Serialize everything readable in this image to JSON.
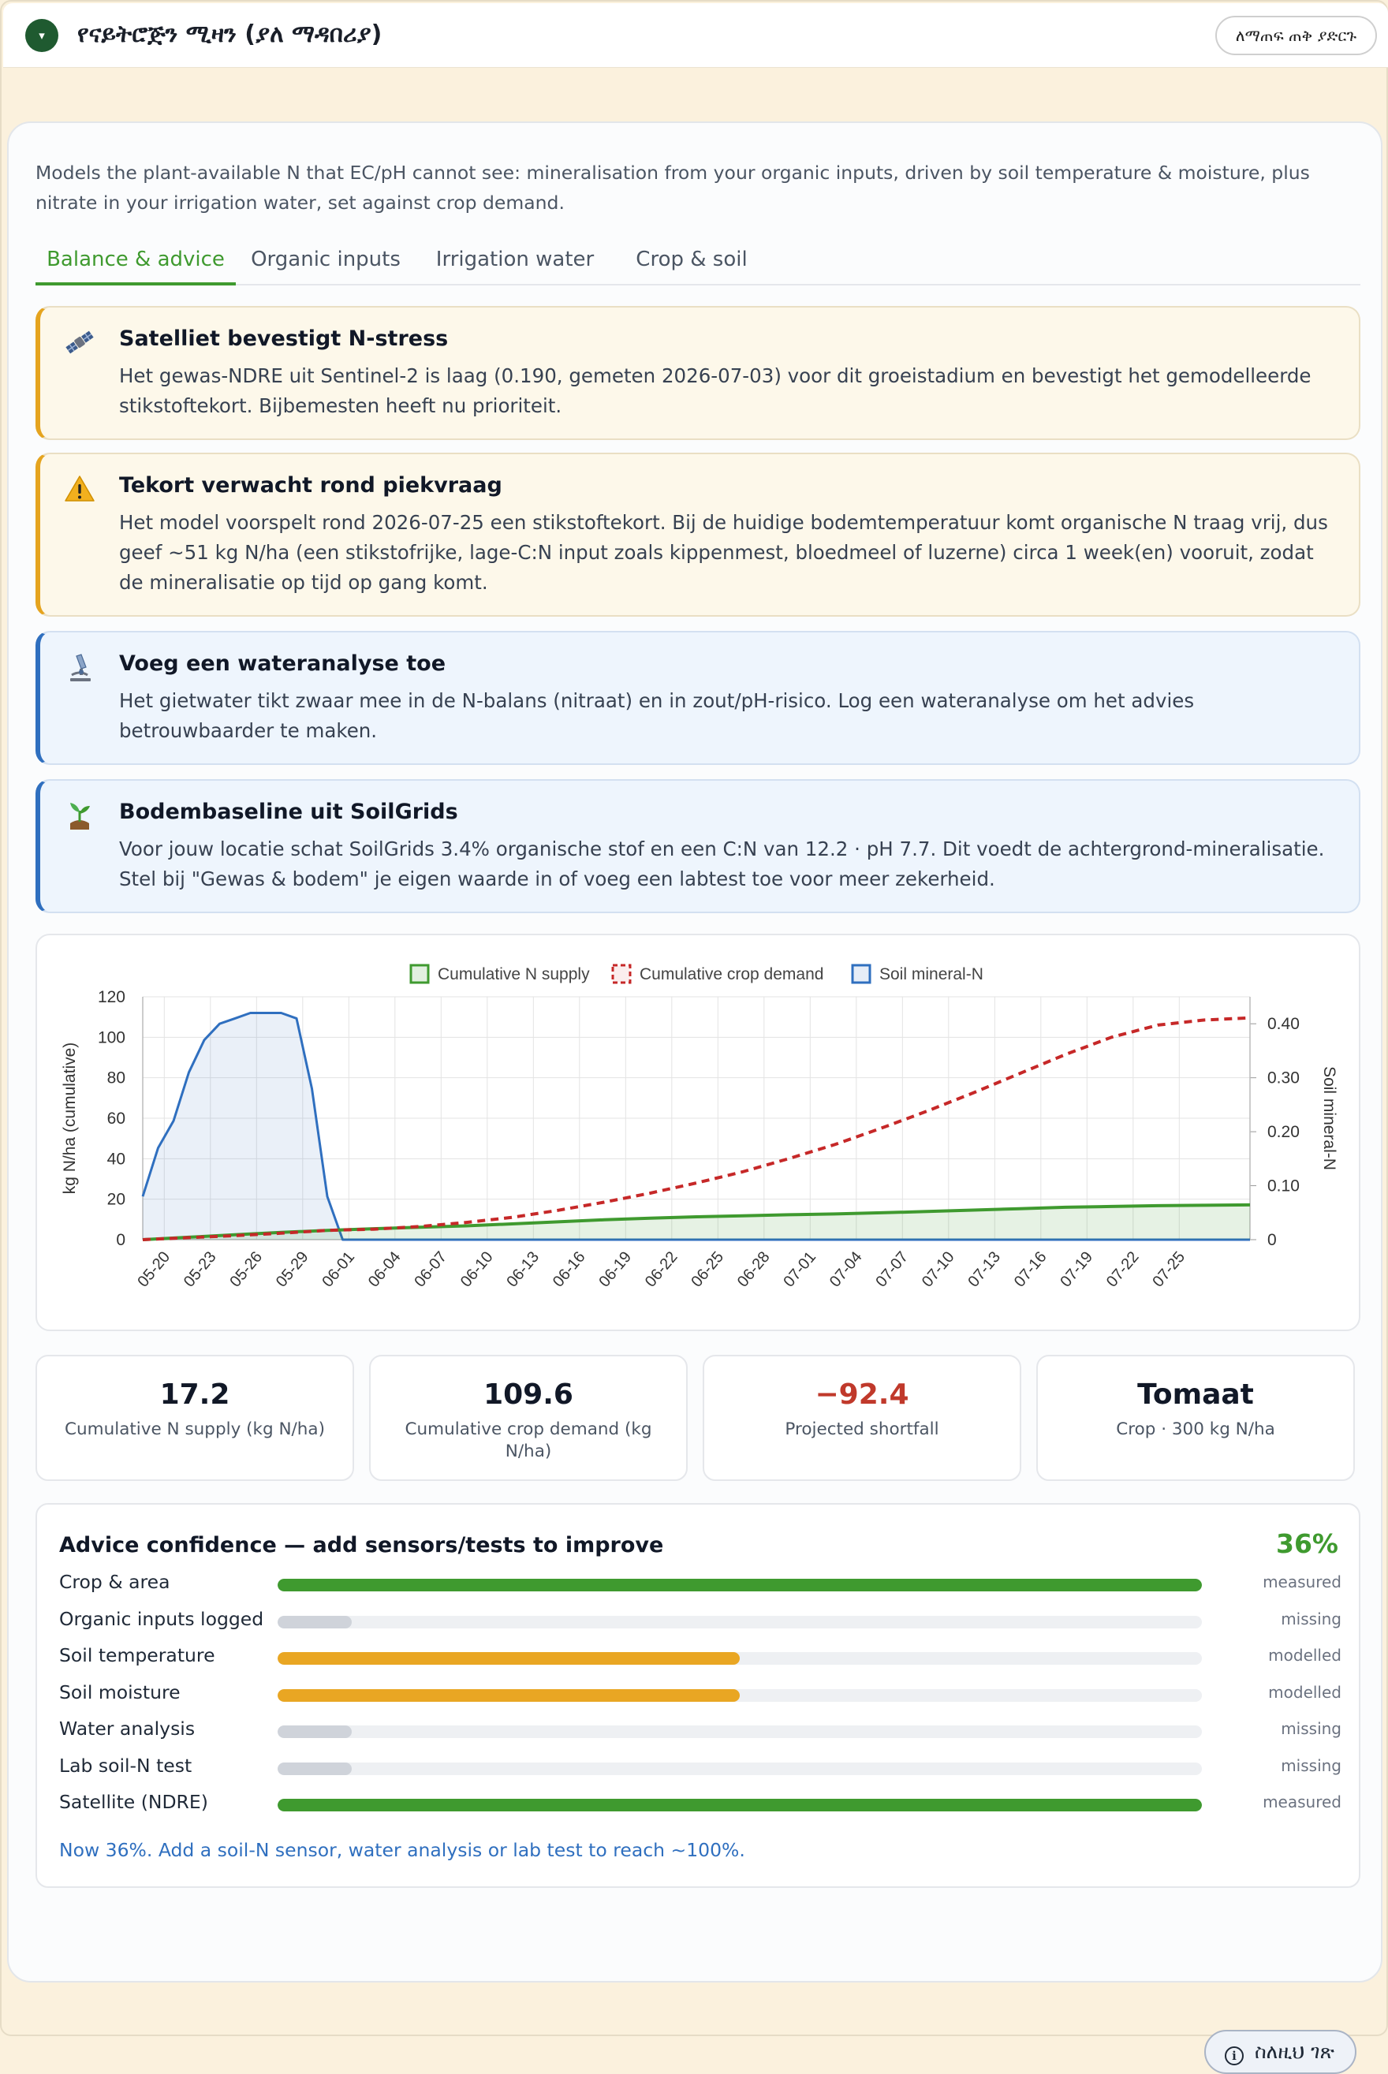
{
  "header": {
    "collapse_glyph": "▾",
    "title": "የናይትሮጅን ሚዛን (ያለ ማዳበሪያ)",
    "help_label": "ለማጠፍ ጠቅ ያድርጉ"
  },
  "intro": "Models the plant-available N that EC/pH cannot see: mineralisation from your organic inputs, driven by soil temperature & moisture, plus nitrate in your irrigation water, set against crop demand.",
  "tabs": [
    {
      "label": "Balance & advice",
      "active": true
    },
    {
      "label": "Organic inputs",
      "active": false
    },
    {
      "label": "Irrigation water",
      "active": false
    },
    {
      "label": "Crop & soil",
      "active": false
    }
  ],
  "alerts": [
    {
      "icon": "satellite-icon",
      "kind": "warning",
      "title": "Satelliet bevestigt N-stress",
      "body": "Het gewas-NDRE uit Sentinel-2 is laag (0.190, gemeten 2026-07-03) voor dit groeistadium en bevestigt het gemodelleerde stikstoftekort. Bijbemesten heeft nu prioriteit."
    },
    {
      "icon": "warning-icon",
      "kind": "warning",
      "title": "Tekort verwacht rond piekvraag",
      "body": "Het model voorspelt rond 2026-07-25 een stikstoftekort. Bij de huidige bodemtemperatuur komt organische N traag vrij, dus geef ~51 kg N/ha (een stikstofrijke, lage-C:N input zoals kippenmest, bloedmeel of luzerne) circa 1 week(en) vooruit, zodat de mineralisatie op tijd op gang komt."
    },
    {
      "icon": "microscope-icon",
      "kind": "info",
      "title": "Voeg een wateranalyse toe",
      "body": "Het gietwater tikt zwaar mee in de N-balans (nitraat) en in zout/pH-risico. Log een wateranalyse om het advies betrouwbaarder te maken."
    },
    {
      "icon": "seedling-icon",
      "kind": "info",
      "title": "Bodembaseline uit SoilGrids",
      "body": "Voor jouw locatie schat SoilGrids 3.4% organische stof en een C:N van 12.2 · pH 7.7. Dit voedt de achtergrond-mineralisatie. Stel bij \"Gewas & bodem\" je eigen waarde in of voeg een labtest toe voor meer zekerheid."
    }
  ],
  "chart_data": {
    "type": "line",
    "legend": [
      "Cumulative N supply",
      "Cumulative crop demand",
      "Soil mineral-N"
    ],
    "legend_position": "top-center",
    "ylabel": "kg N/ha (cumulative)",
    "y2label": "Soil mineral-N",
    "ylim": [
      0,
      120
    ],
    "y_ticks": [
      0,
      20,
      40,
      60,
      80,
      100,
      120
    ],
    "y2lim": [
      0,
      0.45
    ],
    "y2_ticks": [
      "0",
      "0.10",
      "0.20",
      "0.30",
      "0.40"
    ],
    "x_ticks": [
      "05-20",
      "05-23",
      "05-26",
      "05-29",
      "06-01",
      "06-04",
      "06-07",
      "06-10",
      "06-13",
      "06-16",
      "06-19",
      "06-22",
      "06-25",
      "06-28",
      "07-01",
      "07-04",
      "07-07",
      "07-10",
      "07-13",
      "07-16",
      "07-19",
      "07-22",
      "07-25"
    ],
    "grid": true,
    "x_start": "05-20",
    "series": [
      {
        "name": "Cumulative N supply",
        "color": "#3f9a2f",
        "style": "solid-filled",
        "points": [
          [
            0,
            0
          ],
          [
            3,
            1.2
          ],
          [
            6,
            2.4
          ],
          [
            9,
            3.6
          ],
          [
            12,
            4.6
          ],
          [
            15,
            5.4
          ],
          [
            18,
            6.1
          ],
          [
            21,
            6.8
          ],
          [
            24,
            7.8
          ],
          [
            27,
            8.8
          ],
          [
            30,
            9.8
          ],
          [
            33,
            10.6
          ],
          [
            36,
            11.3
          ],
          [
            39,
            11.8
          ],
          [
            42,
            12.3
          ],
          [
            45,
            12.7
          ],
          [
            48,
            13.3
          ],
          [
            51,
            13.9
          ],
          [
            54,
            14.6
          ],
          [
            57,
            15.3
          ],
          [
            60,
            16.0
          ],
          [
            63,
            16.4
          ],
          [
            66,
            16.8
          ],
          [
            69,
            17.0
          ],
          [
            72,
            17.2
          ]
        ]
      },
      {
        "name": "Cumulative crop demand",
        "color": "#c62828",
        "style": "dashed",
        "points": [
          [
            0,
            0
          ],
          [
            3,
            1.0
          ],
          [
            6,
            2.0
          ],
          [
            9,
            3.2
          ],
          [
            12,
            4.6
          ],
          [
            15,
            5.2
          ],
          [
            18,
            6.5
          ],
          [
            21,
            8.5
          ],
          [
            24,
            11
          ],
          [
            27,
            14.5
          ],
          [
            30,
            18.5
          ],
          [
            33,
            23
          ],
          [
            36,
            28
          ],
          [
            39,
            33.5
          ],
          [
            42,
            40
          ],
          [
            45,
            47
          ],
          [
            48,
            55
          ],
          [
            51,
            63.5
          ],
          [
            54,
            72.5
          ],
          [
            57,
            82
          ],
          [
            60,
            91.5
          ],
          [
            63,
            100
          ],
          [
            66,
            106
          ],
          [
            69,
            108.5
          ],
          [
            72,
            109.6
          ]
        ]
      },
      {
        "name": "Soil mineral-N",
        "color": "#2f6fbf",
        "style": "solid-filled",
        "axis": "right",
        "points": [
          [
            0,
            0.08
          ],
          [
            1,
            0.17
          ],
          [
            2,
            0.22
          ],
          [
            3,
            0.31
          ],
          [
            4,
            0.37
          ],
          [
            5,
            0.4
          ],
          [
            6,
            0.41
          ],
          [
            7,
            0.42
          ],
          [
            8,
            0.42
          ],
          [
            9,
            0.42
          ],
          [
            10,
            0.41
          ],
          [
            11,
            0.28
          ],
          [
            12,
            0.08
          ],
          [
            13,
            0.0
          ],
          [
            72,
            0.0
          ]
        ]
      }
    ]
  },
  "stats": [
    {
      "value": "17.2",
      "label": "Cumulative N supply (kg N/ha)",
      "color": "#111827"
    },
    {
      "value": "109.6",
      "label": "Cumulative crop demand (kg N/ha)",
      "color": "#111827"
    },
    {
      "value": "−92.4",
      "label": "Projected shortfall",
      "color": "#c0392b"
    },
    {
      "value": "Tomaat",
      "label": "Crop · 300 kg N/ha",
      "color": "#111827"
    }
  ],
  "confidence": {
    "title": "Advice confidence — add sensors/tests to improve",
    "percent": "36%",
    "rows": [
      {
        "label": "Crop & area",
        "status": "measured",
        "level": 1.0,
        "color": "#3f9a2f"
      },
      {
        "label": "Organic inputs logged",
        "status": "missing",
        "level": 0.08,
        "color": "#cfd3da"
      },
      {
        "label": "Soil temperature",
        "status": "modelled",
        "level": 0.5,
        "color": "#e9a623"
      },
      {
        "label": "Soil moisture",
        "status": "modelled",
        "level": 0.5,
        "color": "#e9a623"
      },
      {
        "label": "Water analysis",
        "status": "missing",
        "level": 0.08,
        "color": "#cfd3da"
      },
      {
        "label": "Lab soil-N test",
        "status": "missing",
        "level": 0.08,
        "color": "#cfd3da"
      },
      {
        "label": "Satellite (NDRE)",
        "status": "measured",
        "level": 1.0,
        "color": "#3f9a2f"
      }
    ],
    "note": "Now 36%. Add a soil-N sensor, water analysis or lab test to reach ~100%."
  },
  "about_label": "ስለዚህ ገጽ"
}
